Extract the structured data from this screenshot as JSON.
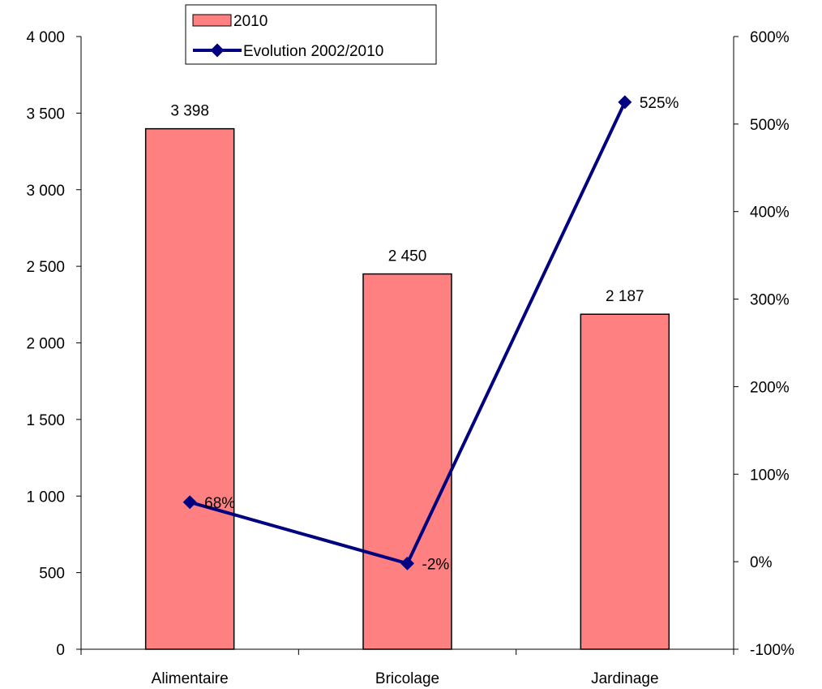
{
  "chart_data": {
    "type": "bar",
    "categories": [
      "Alimentaire",
      "Bricolage",
      "Jardinage"
    ],
    "series": [
      {
        "name": "2010",
        "type": "bar",
        "axis": "left",
        "values": [
          3398,
          2450,
          2187
        ],
        "labels": [
          "3 398",
          "2 450",
          "2 187"
        ],
        "color": "#FF8080"
      },
      {
        "name": "Evolution 2002/2010",
        "type": "line",
        "axis": "right",
        "values": [
          68,
          -2,
          525
        ],
        "labels": [
          "68%",
          "-2%",
          "525%"
        ],
        "color": "#000080"
      }
    ],
    "y_left": {
      "ylim": [
        0,
        4000
      ],
      "ticks": [
        0,
        500,
        1000,
        1500,
        2000,
        2500,
        3000,
        3500,
        4000
      ],
      "tick_labels": [
        "0",
        "500",
        "1 000",
        "1 500",
        "2 000",
        "2 500",
        "3 000",
        "3 500",
        "4 000"
      ]
    },
    "y_right": {
      "ylim": [
        -100,
        600
      ],
      "ticks": [
        -100,
        0,
        100,
        200,
        300,
        400,
        500,
        600
      ],
      "tick_labels": [
        "-100%",
        "0%",
        "100%",
        "200%",
        "300%",
        "400%",
        "500%",
        "600%"
      ]
    },
    "legend": {
      "placement": "top-left",
      "entries": [
        "2010",
        "Evolution 2002/2010"
      ]
    },
    "grid": false
  }
}
